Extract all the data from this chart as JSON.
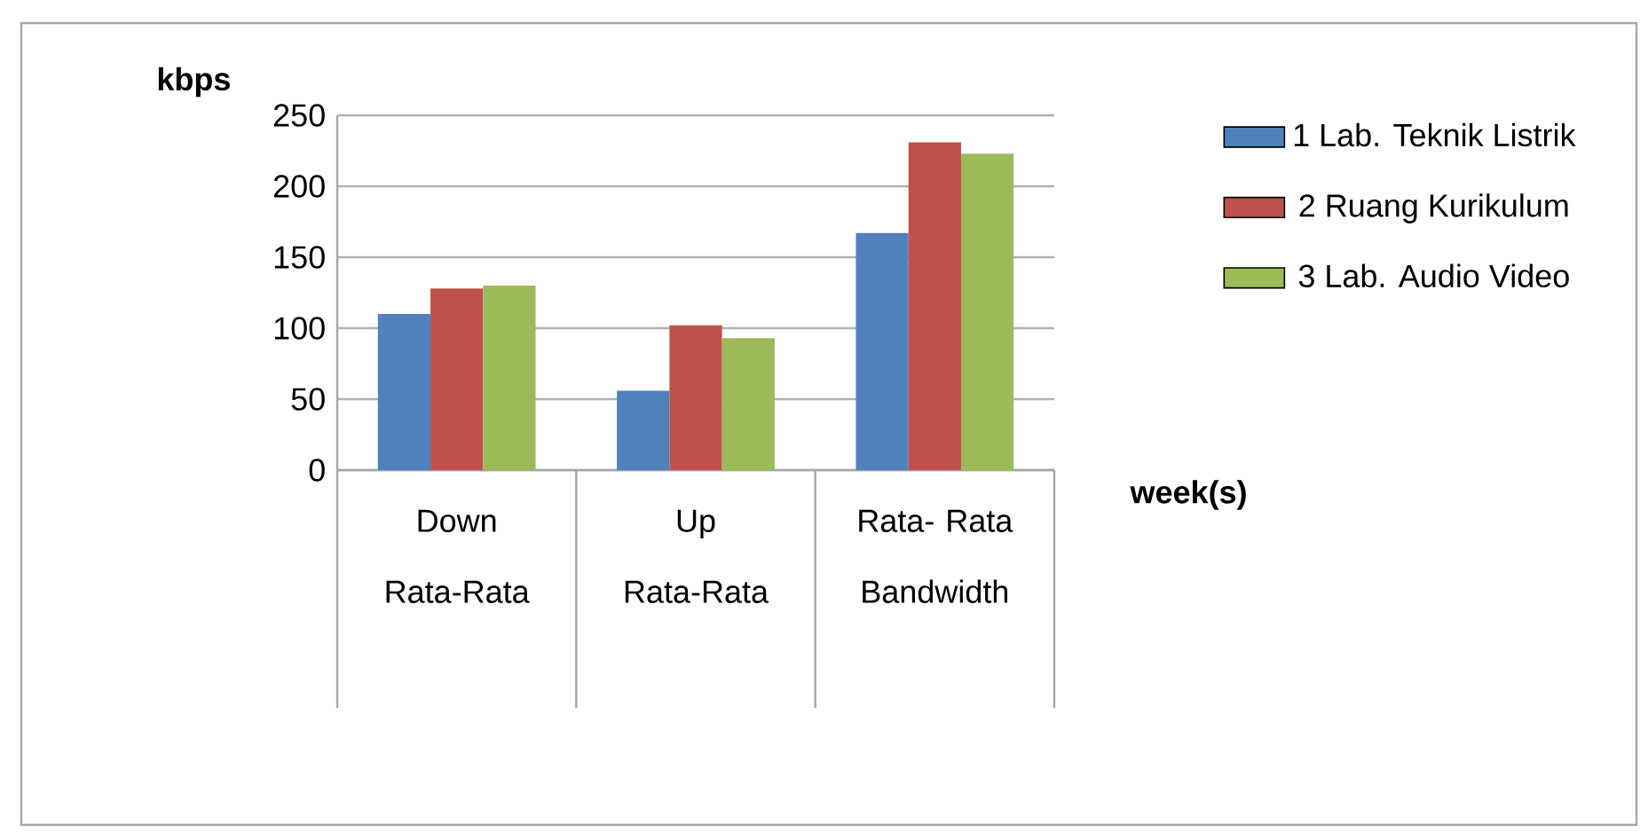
{
  "chart_data": {
    "type": "bar",
    "ylabel": "kbps",
    "xlabel": "week(s)",
    "categories": [
      "Down Rata-Rata",
      "Up Rata-Rata",
      "Rata- Rata Bandwidth"
    ],
    "series": [
      {
        "name": "1 Lab. Teknik Listrik",
        "color": "#4f81bd",
        "values": [
          110,
          56,
          167
        ]
      },
      {
        "name": "2 Ruang Kurikulum",
        "color": "#c0504d",
        "values": [
          128,
          102,
          231
        ]
      },
      {
        "name": "3 Lab. Audio Video",
        "color": "#9bbb59",
        "values": [
          130,
          93,
          223
        ]
      }
    ],
    "ylim": [
      0,
      250
    ],
    "yticks": [
      0,
      50,
      100,
      150,
      200,
      250
    ],
    "grid": "y",
    "legend": "right"
  }
}
